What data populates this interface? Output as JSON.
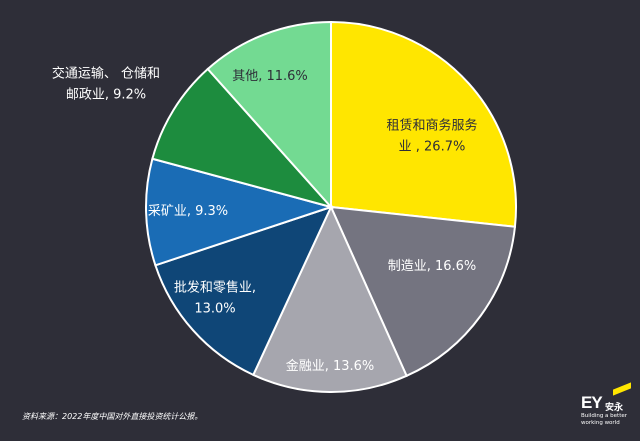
{
  "chart_data": {
    "type": "pie",
    "title": "",
    "legend": "none",
    "slices": [
      {
        "label_lines": [
          "租赁和商务服务",
          "业 , 26.7%"
        ],
        "label": "租赁和商务服务业",
        "value": 26.7,
        "color": "#ffe600",
        "text_color": "#2e2e38"
      },
      {
        "label_lines": [
          "制造业, 16.6%"
        ],
        "label": "制造业",
        "value": 16.6,
        "color": "#747480",
        "text_color": "#ffffff"
      },
      {
        "label_lines": [
          "金融业, 13.6%"
        ],
        "label": "金融业",
        "value": 13.6,
        "color": "#a6a6ae",
        "text_color": "#ffffff"
      },
      {
        "label_lines": [
          "批发和零售业,",
          "13.0%"
        ],
        "label": "批发和零售业",
        "value": 13.0,
        "color": "#0f4677",
        "text_color": "#ffffff"
      },
      {
        "label_lines": [
          "采矿业, 9.3%"
        ],
        "label": "采矿业",
        "value": 9.3,
        "color": "#1a6cb5",
        "text_color": "#ffffff"
      },
      {
        "label_lines": [
          "交通运输、 仓储和",
          "邮政业, 9.2%"
        ],
        "label": "交通运输、 仓储和邮政业",
        "value": 9.2,
        "color": "#1d8c3e",
        "text_color": "#ffffff"
      },
      {
        "label_lines": [
          "其他, 11.6%"
        ],
        "label": "其他",
        "value": 11.6,
        "color": "#73da92",
        "text_color": "#2e2e38"
      }
    ]
  },
  "source_note": "资料来源：2022年度中国对外直接投资统计公报。",
  "logo": {
    "ey": "EY",
    "cn": "安永",
    "tagline_1": "Building a better",
    "tagline_2": "working world"
  }
}
